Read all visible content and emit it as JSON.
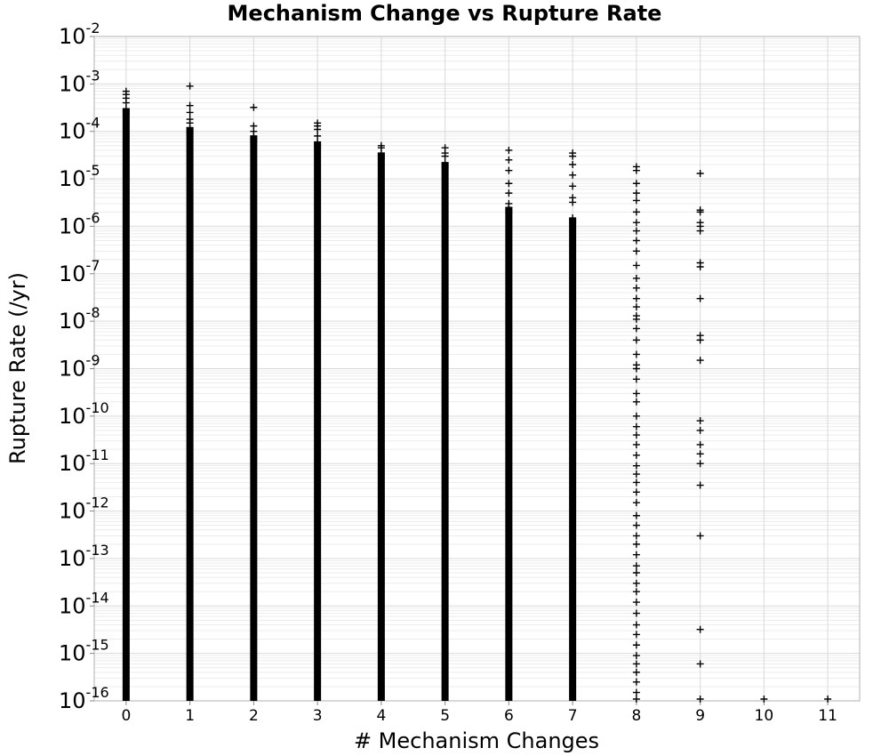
{
  "chart_data": {
    "type": "scatter",
    "title": "Mechanism Change vs Rupture Rate",
    "xlabel": "# Mechanism Changes",
    "ylabel": "Rupture Rate (/yr)",
    "x_ticks": [
      "0",
      "1",
      "2",
      "3",
      "4",
      "5",
      "6",
      "7",
      "8",
      "9",
      "10",
      "11"
    ],
    "y_tick_base": "10",
    "y_tick_exponents": [
      "-16",
      "-15",
      "-14",
      "-13",
      "-12",
      "-11",
      "-10",
      "-9",
      "-8",
      "-7",
      "-6",
      "-5",
      "-4",
      "-3",
      "-2"
    ],
    "xlim": [
      -0.5,
      11.5
    ],
    "ylim": [
      1e-16,
      0.01
    ],
    "y_scale": "log",
    "grid": true,
    "marker": "+",
    "marker_color": "#000000",
    "columns": [
      {
        "x": 0,
        "dense_range": [
          1e-16,
          0.0003
        ],
        "outliers": [
          0.0007,
          0.0006,
          0.0005,
          0.0004
        ]
      },
      {
        "x": 1,
        "dense_range": [
          1e-16,
          0.00012
        ],
        "outliers": [
          0.0009,
          0.00035,
          0.00025,
          0.00018,
          0.00015
        ]
      },
      {
        "x": 2,
        "dense_range": [
          1e-16,
          8e-05
        ],
        "outliers": [
          0.00032,
          0.00013,
          0.0001
        ]
      },
      {
        "x": 3,
        "dense_range": [
          1e-16,
          6e-05
        ],
        "outliers": [
          0.00015,
          0.00013,
          0.00011,
          8e-05
        ]
      },
      {
        "x": 4,
        "dense_range": [
          1e-16,
          3.5e-05
        ],
        "outliers": [
          5e-05,
          4.5e-05
        ]
      },
      {
        "x": 5,
        "dense_range": [
          1e-16,
          2.2e-05
        ],
        "outliers": [
          4.5e-05,
          3.5e-05,
          3e-05
        ]
      },
      {
        "x": 6,
        "dense_range": [
          1e-16,
          2.5e-06
        ],
        "outliers": [
          4e-05,
          2.5e-05,
          1.5e-05,
          8e-06,
          5e-06,
          3e-06
        ]
      },
      {
        "x": 7,
        "dense_range": [
          1e-16,
          1.5e-06
        ],
        "outliers": [
          3.5e-05,
          3e-05,
          2e-05,
          1.2e-05,
          7e-06,
          4e-06,
          3.2e-06
        ]
      },
      {
        "x": 8,
        "dense_range": null,
        "outliers": [
          1.8e-05,
          1.5e-05,
          8e-06,
          5e-06,
          3.5e-06,
          2e-06,
          1.2e-06,
          8e-07,
          5e-07,
          3e-07,
          1.5e-07,
          8e-08,
          5e-08,
          3e-08,
          2e-08,
          1.3e-08,
          1.1e-08,
          7e-09,
          4e-09,
          2e-09,
          1.2e-09,
          1e-09,
          6e-10,
          3e-10,
          2e-10,
          1e-10,
          6e-11,
          4e-11,
          2.5e-11,
          1.5e-11,
          9e-12,
          6e-12,
          4e-12,
          2.5e-12,
          1.5e-12,
          8e-13,
          5e-13,
          3e-13,
          2e-13,
          1.2e-13,
          7e-14,
          5e-14,
          3e-14,
          2e-14,
          1.2e-14,
          7e-15,
          4e-15,
          2.5e-15,
          1.5e-15,
          9e-16,
          6e-16,
          4e-16,
          2.5e-16,
          1.5e-16,
          1e-16
        ]
      },
      {
        "x": 9,
        "dense_range": null,
        "outliers": [
          1.3e-05,
          2.2e-06,
          2e-06,
          1.2e-06,
          1e-06,
          8e-07,
          1.7e-07,
          1.4e-07,
          3e-08,
          5e-09,
          4e-09,
          1.5e-09,
          8e-11,
          5e-11,
          2.5e-11,
          1.6e-11,
          1e-11,
          3.5e-12,
          3e-13,
          3.2e-15,
          6e-16,
          1e-16
        ]
      },
      {
        "x": 10,
        "dense_range": null,
        "outliers": [
          1e-16
        ]
      },
      {
        "x": 11,
        "dense_range": null,
        "outliers": [
          1e-16
        ]
      }
    ]
  }
}
